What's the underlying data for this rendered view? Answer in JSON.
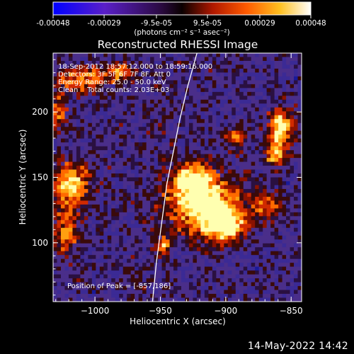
{
  "colorbar": {
    "tick_labels": [
      "-0.00048",
      "-0.00029",
      "-9.5e-05",
      "9.5e-05",
      "0.00029",
      "0.00048"
    ],
    "tick_values": [
      -0.00048,
      -0.00029,
      -9.5e-05,
      9.5e-05,
      0.00029,
      0.00048
    ],
    "range": [
      -0.00048,
      0.00048
    ],
    "units": "(photons cm⁻² s⁻¹ asec⁻²)",
    "colors": [
      "#0000ff",
      "#6a1fb8",
      "#1a0000",
      "#cc2200",
      "#ff9900",
      "#ffffff"
    ]
  },
  "footer_timestamp": "14-May-2022 14:42",
  "chart_data": {
    "type": "heatmap",
    "title": "Reconstructed RHESSI Image",
    "xlabel": "Heliocentric X (arcsec)",
    "ylabel": "Heliocentric Y (arcsec)",
    "xlim": [
      -1032,
      -842
    ],
    "ylim": [
      55,
      245
    ],
    "x_ticks": [
      -1000,
      -950,
      -900,
      -850
    ],
    "x_tick_labels": [
      "−1000",
      "−950",
      "−900",
      "−850"
    ],
    "y_ticks": [
      100,
      150,
      200
    ],
    "y_tick_labels": [
      "100",
      "150",
      "200"
    ],
    "annotations": [
      "18-Sep-2012 18:57:12.000 to 18:59:16.000",
      "Detectors: 3F 5F 6F 7F 8F, Att 0",
      "Energy Range: 25.0 - 50.0 keV",
      "Clean    Total counts: 2.03E+03"
    ],
    "peak_label": "Position of Peak = [-857,186]",
    "peak_position": [
      -857,
      186
    ],
    "grid": false,
    "limb": [
      [
        -956,
        55
      ],
      [
        -953,
        85
      ],
      [
        -949,
        115
      ],
      [
        -945,
        145
      ],
      [
        -940,
        170
      ],
      [
        -935,
        195
      ],
      [
        -929,
        220
      ],
      [
        -922,
        245
      ]
    ],
    "bright_regions": [
      {
        "center": [
          -915,
          128
        ],
        "radius": [
          30,
          22
        ],
        "level": 0.98
      },
      {
        "center": [
          -926,
          148
        ],
        "radius": [
          15,
          14
        ],
        "level": 0.85
      },
      {
        "center": [
          -900,
          112
        ],
        "radius": [
          14,
          12
        ],
        "level": 0.9
      },
      {
        "center": [
          -858,
          188
        ],
        "radius": [
          9,
          14
        ],
        "level": 1.0
      },
      {
        "center": [
          -862,
          168
        ],
        "radius": [
          8,
          10
        ],
        "level": 0.8
      },
      {
        "center": [
          -1018,
          145
        ],
        "radius": [
          14,
          16
        ],
        "level": 0.85
      },
      {
        "center": [
          -1022,
          110
        ],
        "radius": [
          10,
          22
        ],
        "level": 0.55
      },
      {
        "center": [
          -1010,
          225
        ],
        "radius": [
          18,
          10
        ],
        "level": 0.7
      },
      {
        "center": [
          -982,
          230
        ],
        "radius": [
          10,
          8
        ],
        "level": 0.65
      },
      {
        "center": [
          -947,
          98
        ],
        "radius": [
          5,
          7
        ],
        "level": 0.75
      },
      {
        "center": [
          -892,
          180
        ],
        "radius": [
          8,
          7
        ],
        "level": 0.6
      },
      {
        "center": [
          -868,
          128
        ],
        "radius": [
          10,
          10
        ],
        "level": 0.55
      },
      {
        "center": [
          -1028,
          200
        ],
        "radius": [
          6,
          14
        ],
        "level": 0.55
      }
    ]
  }
}
